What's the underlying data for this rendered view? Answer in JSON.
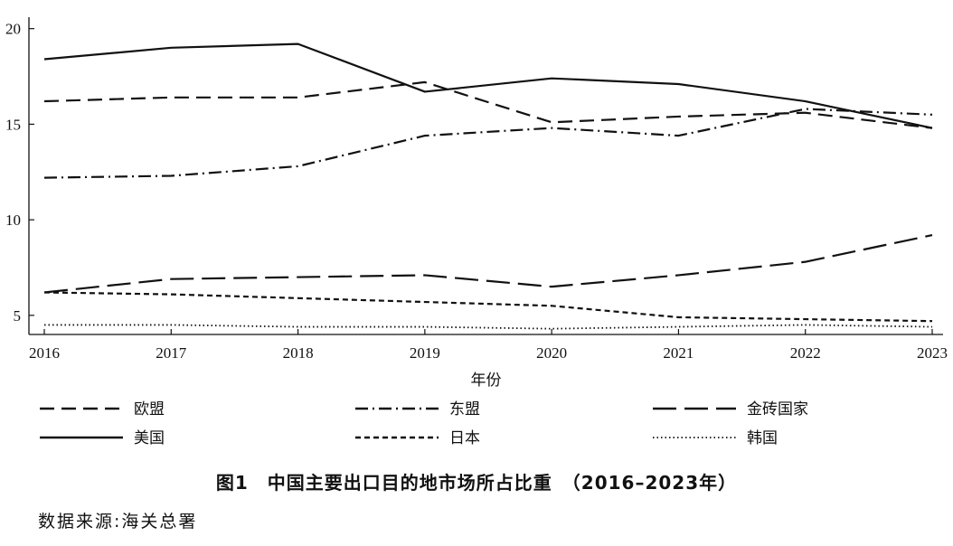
{
  "chart_data": {
    "type": "line",
    "title": "图1　中国主要出口目的地市场所占比重　（2016–2023年）",
    "xlabel": "年份",
    "ylabel": "",
    "x": [
      "2016",
      "2017",
      "2018",
      "2019",
      "2020",
      "2021",
      "2022",
      "2023"
    ],
    "ylim": [
      4,
      20.6
    ],
    "yticks": [
      "20",
      "15",
      "10",
      "5"
    ],
    "grid": false,
    "legend_position": "bottom",
    "series": [
      {
        "name": "欧盟",
        "dash": "long-dash",
        "values": [
          16.2,
          16.4,
          16.4,
          17.2,
          15.1,
          15.4,
          15.6,
          14.8
        ]
      },
      {
        "name": "东盟",
        "dash": "dash-dot",
        "values": [
          12.2,
          12.3,
          12.8,
          14.4,
          14.8,
          14.4,
          15.8,
          15.5
        ]
      },
      {
        "name": "金砖国家",
        "dash": "extra-long-dash",
        "values": [
          6.2,
          6.9,
          7.0,
          7.1,
          6.5,
          7.1,
          7.8,
          9.2
        ]
      },
      {
        "name": "美国",
        "dash": "solid",
        "values": [
          18.4,
          19.0,
          19.2,
          16.7,
          17.4,
          17.1,
          16.2,
          14.8
        ]
      },
      {
        "name": "日本",
        "dash": "short-dash",
        "values": [
          6.2,
          6.1,
          5.9,
          5.7,
          5.5,
          4.9,
          4.8,
          4.7
        ]
      },
      {
        "name": "韩国",
        "dash": "dotted",
        "values": [
          4.5,
          4.5,
          4.4,
          4.4,
          4.3,
          4.4,
          4.5,
          4.4
        ]
      }
    ]
  },
  "caption": {
    "title": "图1　中国主要出口目的地市场所占比重　（2016–2023年）",
    "source": "数据来源:海关总署"
  }
}
